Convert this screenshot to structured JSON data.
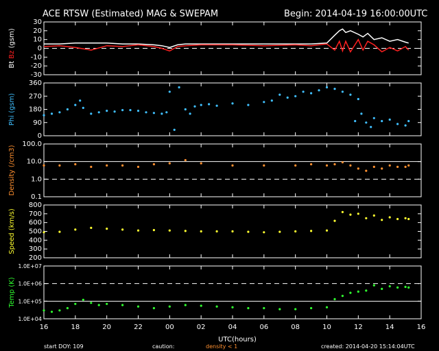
{
  "header": {
    "title": "ACE RTSW (Estimated) MAG & SWEPAM",
    "begin": "Begin: 2014-04-19 16:00:00UTC"
  },
  "footer": {
    "start_doy": "start DOY: 109",
    "caution": "caution:",
    "density_note": "density < 1",
    "created": "created: 2014-04-20 15:14:04UTC"
  },
  "colors": {
    "bt": "#ffffff",
    "bz": "#ff2020",
    "phi": "#40c0ff",
    "density": "#ff9030",
    "speed": "#ffff30",
    "temp": "#30ff30",
    "caution": "#ff9030"
  },
  "chart_data": [
    {
      "type": "line",
      "ylabel_parts": [
        "Bt",
        "Bz",
        "(gsm)"
      ],
      "ylim": [
        -30,
        30
      ],
      "yticks": [
        30,
        20,
        10,
        0,
        -10,
        -20,
        -30
      ],
      "ref_lines": [
        {
          "y": 0,
          "style": "dashed"
        }
      ],
      "series": [
        {
          "name": "Bt",
          "x": [
            16,
            17,
            18,
            19,
            20,
            21,
            22,
            23,
            23.5,
            24,
            24.5,
            25,
            26,
            28,
            30,
            32,
            33,
            34,
            34.5,
            34.8,
            35,
            35.2,
            35.5,
            36,
            36.3,
            36.6,
            37,
            37.5,
            38,
            38.5,
            39,
            39.2
          ],
          "y": [
            5,
            5,
            6,
            6,
            6,
            5,
            5,
            4,
            3,
            1,
            4,
            5,
            5,
            5,
            5,
            5,
            5,
            6,
            15,
            20,
            22,
            18,
            20,
            16,
            13,
            17,
            10,
            12,
            8,
            10,
            7,
            6
          ]
        },
        {
          "name": "Bz",
          "x": [
            16,
            17,
            18,
            19,
            20,
            21,
            22,
            23,
            23.5,
            24,
            24.5,
            25,
            26,
            28,
            30,
            32,
            33,
            34,
            34.5,
            34.8,
            35,
            35.2,
            35.5,
            36,
            36.3,
            36.6,
            37,
            37.5,
            38,
            38.5,
            39,
            39.2
          ],
          "y": [
            2,
            3,
            1,
            -2,
            3,
            2,
            4,
            2,
            0,
            -3,
            2,
            3,
            4,
            4,
            3,
            4,
            3,
            5,
            -2,
            8,
            -3,
            8,
            -4,
            10,
            -2,
            8,
            4,
            -4,
            1,
            -3,
            2,
            -2
          ]
        }
      ]
    },
    {
      "type": "scatter",
      "ylabel": "Phi (gsm)",
      "ylim": [
        0,
        360
      ],
      "yticks": [
        360,
        270,
        180,
        90,
        0
      ],
      "series": [
        {
          "name": "Phi",
          "x": [
            16,
            16.5,
            17,
            17.5,
            18,
            18.3,
            18.5,
            19,
            19.5,
            20,
            20.5,
            21,
            21.5,
            22,
            22.5,
            23,
            23.5,
            23.8,
            24,
            24.3,
            24.6,
            25,
            25.3,
            25.6,
            26,
            26.5,
            27,
            28,
            29,
            30,
            30.5,
            31,
            31.5,
            32,
            32.5,
            33,
            33.5,
            34,
            34.5,
            35,
            35.5,
            35.8,
            36,
            36.2,
            36.5,
            36.8,
            37,
            37.5,
            38,
            38.5,
            39,
            39.2
          ],
          "y": [
            140,
            150,
            160,
            180,
            210,
            240,
            190,
            150,
            160,
            170,
            165,
            175,
            175,
            170,
            160,
            155,
            150,
            160,
            300,
            40,
            330,
            180,
            150,
            200,
            210,
            215,
            205,
            220,
            210,
            230,
            240,
            280,
            260,
            270,
            300,
            290,
            310,
            330,
            320,
            300,
            280,
            100,
            250,
            150,
            90,
            60,
            120,
            100,
            110,
            80,
            70,
            100
          ]
        }
      ]
    },
    {
      "type": "scatter",
      "ylabel": "Density (/cm3)",
      "yscale": "log",
      "ylim": [
        0.1,
        100
      ],
      "yticks": [
        100,
        10,
        1,
        0.1
      ],
      "yticklabels": [
        "100.0",
        "10.0",
        "1.0",
        "0.1"
      ],
      "ref_lines": [
        {
          "y": 10,
          "style": "solid"
        },
        {
          "y": 1,
          "style": "dashed"
        }
      ],
      "series": [
        {
          "name": "Density",
          "x": [
            16,
            17,
            18,
            19,
            20,
            21,
            22,
            23,
            24,
            25,
            26,
            28,
            30,
            32,
            33,
            34,
            34.5,
            35,
            35.5,
            36,
            36.5,
            37,
            37.5,
            38,
            38.5,
            39,
            39.2
          ],
          "y": [
            6,
            6,
            7,
            5,
            6,
            6,
            5,
            7,
            8,
            12,
            8,
            6,
            6,
            6,
            7,
            6,
            7,
            9,
            6,
            4,
            3,
            5,
            4,
            6,
            5,
            5,
            6
          ]
        }
      ]
    },
    {
      "type": "scatter",
      "ylabel": "Speed (km/s)",
      "ylim": [
        200,
        800
      ],
      "yticks": [
        800,
        700,
        600,
        500,
        400,
        300,
        200
      ],
      "series": [
        {
          "name": "Speed",
          "x": [
            16,
            17,
            18,
            19,
            20,
            21,
            22,
            23,
            24,
            25,
            26,
            27,
            28,
            29,
            30,
            31,
            32,
            33,
            34,
            34.5,
            35,
            35.5,
            36,
            36.5,
            37,
            37.5,
            38,
            38.5,
            39,
            39.2
          ],
          "y": [
            490,
            495,
            520,
            540,
            530,
            520,
            510,
            515,
            510,
            505,
            500,
            500,
            500,
            495,
            490,
            495,
            500,
            505,
            510,
            620,
            720,
            690,
            700,
            650,
            680,
            630,
            660,
            640,
            650,
            640
          ]
        }
      ]
    },
    {
      "type": "scatter",
      "ylabel": "Temp (K)",
      "yscale": "log",
      "ylim": [
        10000,
        10000000
      ],
      "yticks": [
        10000000,
        1000000,
        100000,
        10000
      ],
      "yticklabels": [
        "1.0E+07",
        "1.0E+06",
        "1.0E+05",
        "1.0E+04"
      ],
      "ref_lines": [
        {
          "y": 1000000,
          "style": "dashed"
        },
        {
          "y": 100000,
          "style": "solid"
        }
      ],
      "series": [
        {
          "name": "Temp",
          "x": [
            16,
            16.5,
            17,
            17.5,
            18,
            18.5,
            19,
            19.5,
            20,
            21,
            22,
            23,
            24,
            25,
            26,
            27,
            28,
            29,
            30,
            31,
            32,
            33,
            34,
            34.5,
            35,
            35.5,
            36,
            36.5,
            37,
            37.5,
            38,
            38.5,
            39,
            39.2
          ],
          "y": [
            30000,
            25000,
            30000,
            40000,
            70000,
            120000,
            80000,
            60000,
            70000,
            60000,
            50000,
            40000,
            50000,
            60000,
            55000,
            50000,
            45000,
            40000,
            40000,
            35000,
            35000,
            40000,
            45000,
            130000,
            200000,
            300000,
            350000,
            400000,
            800000,
            500000,
            700000,
            600000,
            650000,
            600000
          ]
        }
      ]
    }
  ],
  "x_axis": {
    "xlim": [
      16,
      40
    ],
    "ticks": [
      16,
      18,
      20,
      22,
      24,
      26,
      28,
      30,
      32,
      34,
      36,
      38,
      40
    ],
    "ticklabels": [
      "16",
      "18",
      "20",
      "22",
      "00",
      "02",
      "04",
      "06",
      "08",
      "10",
      "12",
      "14",
      "16"
    ],
    "xlabel": "UTC(hours)"
  }
}
